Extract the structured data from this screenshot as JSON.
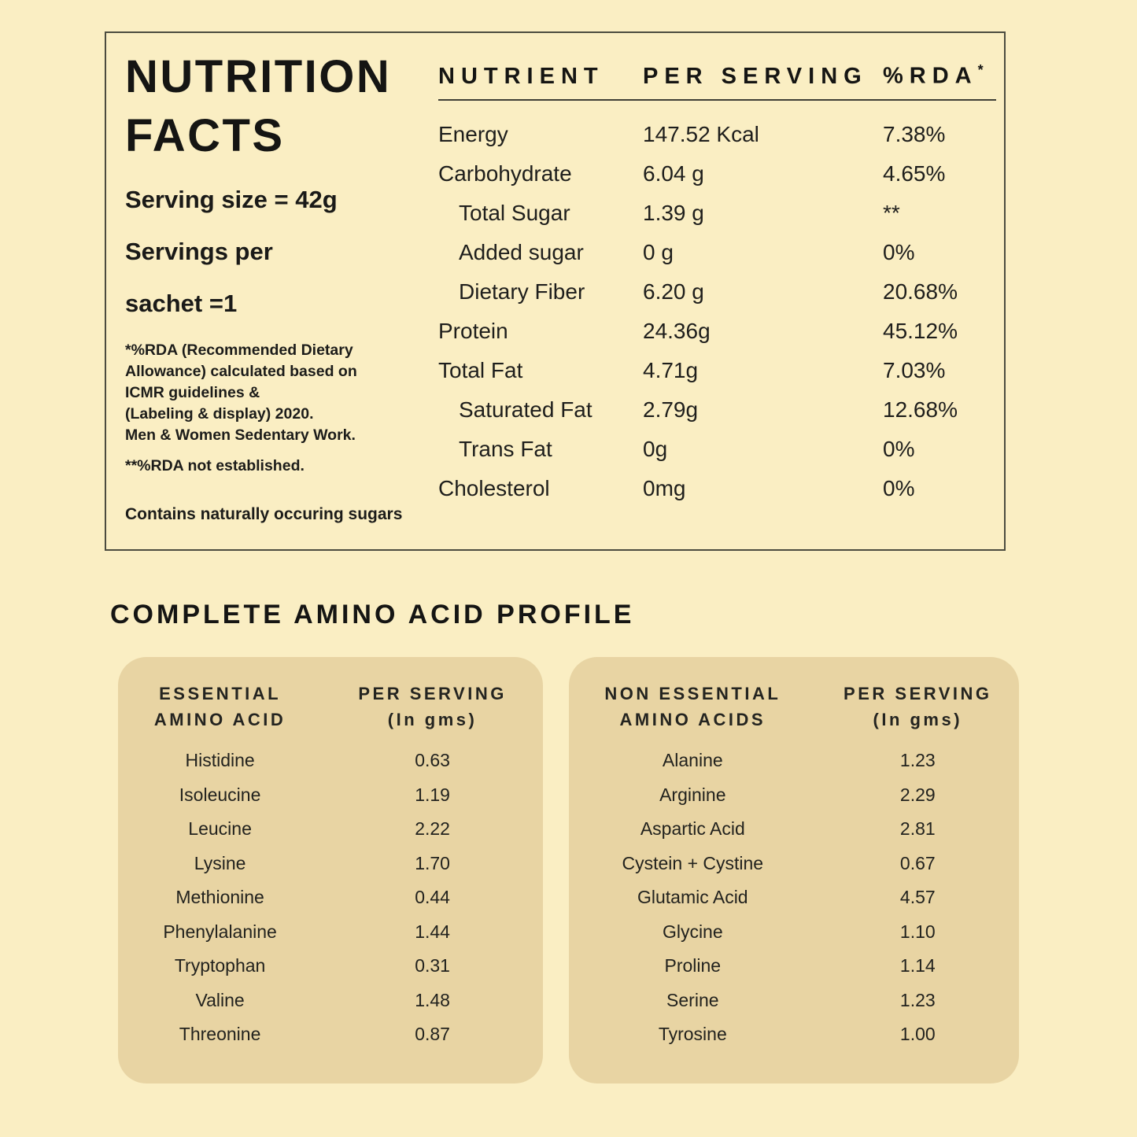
{
  "colors": {
    "page_background": "#FAEEC3",
    "card_background": "#E8D4A3",
    "text": "#1C1C1A",
    "box_border": "#4B4B3F"
  },
  "nutrition_facts": {
    "title_lines": [
      "NUTRITION",
      "FACTS"
    ],
    "serving_lines": [
      "Serving size = 42g",
      "Servings per",
      "sachet =1"
    ],
    "footnote_lines": [
      "*%RDA (Recommended Dietary",
      "Allowance) calculated based on",
      "ICMR guidelines &",
      "(Labeling & display) 2020.",
      "Men & Women Sedentary Work."
    ],
    "footnote_rda_not_established": "**%RDA not established.",
    "footnote_sugars": "Contains naturally occuring sugars",
    "table": {
      "headers": {
        "nutrient": "NUTRIENT",
        "per_serving": "PER SERVING",
        "rda": "%RDA",
        "rda_superscript": "*"
      },
      "rows": [
        {
          "name": "Energy",
          "value": "147.52 Kcal",
          "rda": "7.38%"
        },
        {
          "name": "Carbohydrate",
          "value": "6.04 g",
          "rda": "4.65%"
        },
        {
          "name": "Total Sugar",
          "value": "1.39 g",
          "rda": "**"
        },
        {
          "name": "Added sugar",
          "value": "0 g",
          "rda": "0%"
        },
        {
          "name": "Dietary Fiber",
          "value": "6.20 g",
          "rda": "20.68%"
        },
        {
          "name": "Protein",
          "value": "24.36g",
          "rda": "45.12%"
        },
        {
          "name": "Total Fat",
          "value": "4.71g",
          "rda": "7.03%"
        },
        {
          "name": "Saturated Fat",
          "value": "2.79g",
          "rda": "12.68%"
        },
        {
          "name": "Trans Fat",
          "value": "0g",
          "rda": "0%"
        },
        {
          "name": "Cholesterol",
          "value": "0mg",
          "rda": "0%"
        }
      ]
    }
  },
  "amino_profile": {
    "heading": "COMPLETE AMINO ACID PROFILE",
    "essential": {
      "header_name_lines": [
        "ESSENTIAL",
        "AMINO ACID"
      ],
      "header_value_lines": [
        "PER SERVING",
        "(In gms)"
      ],
      "rows": [
        {
          "name": "Histidine",
          "value": "0.63"
        },
        {
          "name": "Isoleucine",
          "value": "1.19"
        },
        {
          "name": "Leucine",
          "value": "2.22"
        },
        {
          "name": "Lysine",
          "value": "1.70"
        },
        {
          "name": "Methionine",
          "value": "0.44"
        },
        {
          "name": "Phenylalanine",
          "value": "1.44"
        },
        {
          "name": "Tryptophan",
          "value": "0.31"
        },
        {
          "name": "Valine",
          "value": "1.48"
        },
        {
          "name": "Threonine",
          "value": "0.87"
        }
      ]
    },
    "non_essential": {
      "header_name_lines": [
        "NON ESSENTIAL",
        "AMINO ACIDS"
      ],
      "header_value_lines": [
        "PER SERVING",
        "(In gms)"
      ],
      "rows": [
        {
          "name": "Alanine",
          "value": "1.23"
        },
        {
          "name": "Arginine",
          "value": "2.29"
        },
        {
          "name": "Aspartic Acid",
          "value": "2.81"
        },
        {
          "name": "Cystein + Cystine",
          "value": "0.67"
        },
        {
          "name": "Glutamic Acid",
          "value": "4.57"
        },
        {
          "name": "Glycine",
          "value": "1.10"
        },
        {
          "name": "Proline",
          "value": "1.14"
        },
        {
          "name": "Serine",
          "value": "1.23"
        },
        {
          "name": "Tyrosine",
          "value": "1.00"
        }
      ]
    }
  }
}
